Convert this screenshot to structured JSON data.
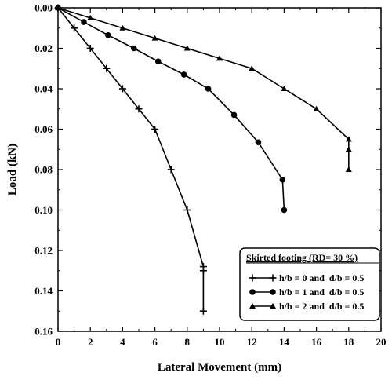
{
  "chart_data": {
    "type": "line",
    "xlabel": "Lateral Movement (mm)",
    "ylabel": "Load (kN)",
    "xlim": [
      0,
      20
    ],
    "ylim": [
      0,
      0.16
    ],
    "y_inverted": true,
    "x_ticks": [
      "0",
      "2",
      "4",
      "6",
      "8",
      "10",
      "12",
      "14",
      "16",
      "18",
      "20"
    ],
    "y_ticks": [
      "0.00",
      "0.02",
      "0.04",
      "0.06",
      "0.08",
      "0.10",
      "0.12",
      "0.14",
      "0.16"
    ],
    "grid": false,
    "legend_title": "Skirted footing (RD= 30 %)",
    "legend_position": "bottom-right",
    "series": [
      {
        "name": "h/b = 0 and  d/b = 0.5",
        "marker": "plus",
        "x": [
          0,
          1,
          2,
          3,
          4,
          5,
          6,
          7,
          8,
          9,
          9,
          9
        ],
        "y": [
          0,
          0.01,
          0.02,
          0.03,
          0.04,
          0.05,
          0.06,
          0.08,
          0.1,
          0.128,
          0.13,
          0.15
        ]
      },
      {
        "name": "h/b = 1 and  d/b = 0.5",
        "marker": "circle",
        "x": [
          0,
          1.6,
          3.1,
          4.7,
          6.2,
          7.8,
          9.3,
          10.9,
          12.4,
          13.9,
          14
        ],
        "y": [
          0,
          0.007,
          0.0135,
          0.02,
          0.0265,
          0.033,
          0.04,
          0.053,
          0.0665,
          0.085,
          0.1
        ]
      },
      {
        "name": "h/b = 2 and  d/b = 0.5",
        "marker": "triangle",
        "x": [
          0,
          2,
          4,
          6,
          8,
          10,
          12,
          14,
          16,
          18,
          18,
          18
        ],
        "y": [
          0,
          0.005,
          0.01,
          0.015,
          0.02,
          0.025,
          0.03,
          0.04,
          0.05,
          0.065,
          0.07,
          0.08
        ]
      }
    ]
  }
}
